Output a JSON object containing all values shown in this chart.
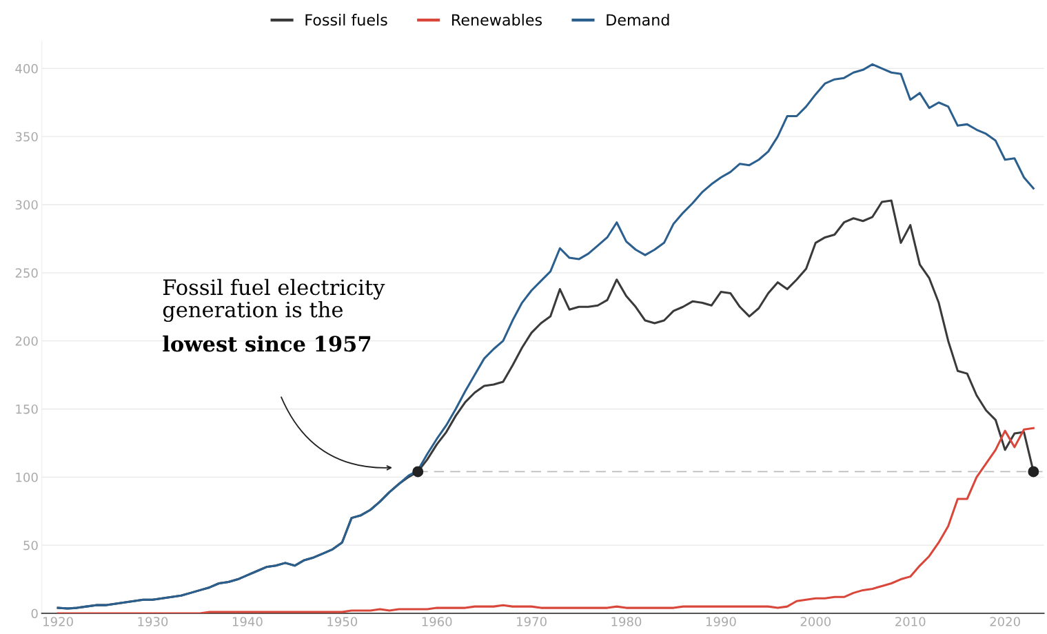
{
  "chart_data": {
    "type": "line",
    "x": [
      1920,
      1921,
      1922,
      1923,
      1924,
      1925,
      1926,
      1927,
      1928,
      1929,
      1930,
      1931,
      1932,
      1933,
      1934,
      1935,
      1936,
      1937,
      1938,
      1939,
      1940,
      1941,
      1942,
      1943,
      1944,
      1945,
      1946,
      1947,
      1948,
      1949,
      1950,
      1951,
      1952,
      1953,
      1954,
      1955,
      1956,
      1957,
      1958,
      1959,
      1960,
      1961,
      1962,
      1963,
      1964,
      1965,
      1966,
      1967,
      1968,
      1969,
      1970,
      1971,
      1972,
      1973,
      1974,
      1975,
      1976,
      1977,
      1978,
      1979,
      1980,
      1981,
      1982,
      1983,
      1984,
      1985,
      1986,
      1987,
      1988,
      1989,
      1990,
      1991,
      1992,
      1993,
      1994,
      1995,
      1996,
      1997,
      1998,
      1999,
      2000,
      2001,
      2002,
      2003,
      2004,
      2005,
      2006,
      2007,
      2008,
      2009,
      2010,
      2011,
      2012,
      2013,
      2014,
      2015,
      2016,
      2017,
      2018,
      2019,
      2020,
      2021,
      2022,
      2023
    ],
    "series": [
      {
        "name": "Fossil fuels",
        "color": "#3a3a3a",
        "values": [
          4,
          3.5,
          4,
          5,
          6,
          6,
          7,
          8,
          9,
          10,
          10,
          11,
          12,
          13,
          15,
          17,
          19,
          22,
          23,
          25,
          28,
          31,
          34,
          35,
          37,
          35,
          39,
          41,
          44,
          47,
          52,
          70,
          72,
          76,
          82,
          89,
          95,
          100,
          104,
          113,
          124,
          133,
          145,
          155,
          162,
          167,
          168,
          170,
          182,
          195,
          206,
          213,
          218,
          238,
          223,
          225,
          225,
          226,
          230,
          245,
          233,
          225,
          215,
          213,
          215,
          222,
          225,
          229,
          228,
          226,
          236,
          235,
          225,
          218,
          224,
          235,
          243,
          238,
          245,
          253,
          272,
          276,
          278,
          287,
          290,
          288,
          291,
          302,
          303,
          272,
          285,
          256,
          246,
          228,
          200,
          178,
          176,
          160,
          149,
          142,
          120,
          132,
          133,
          104
        ]
      },
      {
        "name": "Renewables",
        "color": "#d9463a",
        "values": [
          0,
          0,
          0,
          0,
          0,
          0,
          0,
          0,
          0,
          0,
          0,
          0,
          0,
          0,
          0,
          0,
          1,
          1,
          1,
          1,
          1,
          1,
          1,
          1,
          1,
          1,
          1,
          1,
          1,
          1,
          1,
          2,
          2,
          2,
          3,
          2,
          3,
          3,
          3,
          3,
          4,
          4,
          4,
          4,
          5,
          5,
          5,
          6,
          5,
          5,
          5,
          4,
          4,
          4,
          4,
          4,
          4,
          4,
          4,
          5,
          4,
          4,
          4,
          4,
          4,
          4,
          5,
          5,
          5,
          5,
          5,
          5,
          5,
          5,
          5,
          5,
          4,
          5,
          9,
          10,
          11,
          11,
          12,
          12,
          15,
          17,
          18,
          20,
          22,
          25,
          27,
          35,
          42,
          52,
          64,
          84,
          84,
          100,
          110,
          120,
          134,
          122,
          135,
          136
        ]
      },
      {
        "name": "Demand",
        "color": "#2b5f8e",
        "values": [
          4,
          3.5,
          4,
          5,
          6,
          6,
          7,
          8,
          9,
          10,
          10,
          11,
          12,
          13,
          15,
          17,
          19,
          22,
          23,
          25,
          28,
          31,
          34,
          35,
          37,
          35,
          39,
          41,
          44,
          47,
          52,
          70,
          72,
          76,
          82,
          89,
          95,
          101,
          105,
          117,
          128,
          138,
          150,
          163,
          175,
          187,
          194,
          200,
          215,
          228,
          237,
          244,
          251,
          268,
          261,
          260,
          264,
          270,
          276,
          287,
          273,
          267,
          263,
          267,
          272,
          286,
          294,
          301,
          309,
          315,
          320,
          324,
          330,
          329,
          333,
          339,
          350,
          365,
          365,
          372,
          381,
          389,
          392,
          393,
          397,
          399,
          403,
          400,
          397,
          396,
          377,
          382,
          371,
          375,
          372,
          358,
          359,
          355,
          352,
          347,
          333,
          334,
          320,
          312
        ]
      },
      {
        "type": "scatter",
        "color": "#222222",
        "x": [
          1958,
          2023
        ],
        "values": [
          104,
          104
        ]
      }
    ],
    "xlim": [
      1918.3,
      2024.1
    ],
    "ylim": [
      0,
      420
    ],
    "xticks": [
      1920,
      1930,
      1940,
      1950,
      1960,
      1970,
      1980,
      1990,
      2000,
      2010,
      2020
    ],
    "yticks": [
      0,
      50,
      100,
      150,
      200,
      250,
      300,
      350,
      400
    ],
    "grid": "y",
    "legend": "top",
    "ref_lines": [
      {
        "axis": "y",
        "value": 104,
        "color": "#bbbbbb",
        "line_style": "dashed"
      }
    ],
    "annotations": [
      "Fossil fuel electricity\ngeneration is the",
      "lowest since 1957"
    ]
  }
}
